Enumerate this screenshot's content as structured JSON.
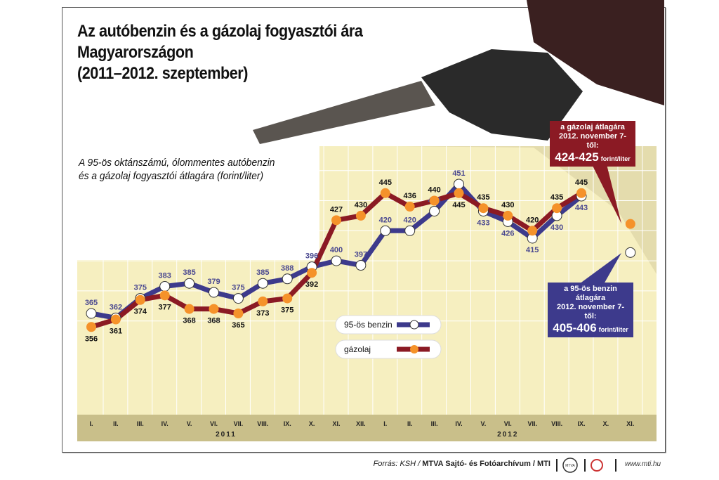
{
  "title": [
    "Az autóbenzin és a gázolaj fogyasztói ára",
    "Magyarországon",
    "(2011–2012. szeptember)"
  ],
  "subtitle": [
    "A 95-ös oktánszámú, ólommentes autóbenzin",
    "és a gázolaj fogyasztói átlagára (forint/liter)"
  ],
  "chart_data": {
    "type": "line",
    "categories": [
      "I.",
      "II.",
      "III.",
      "IV.",
      "V.",
      "VI.",
      "VII.",
      "VIII.",
      "IX.",
      "X.",
      "XI.",
      "XII.",
      "I.",
      "II.",
      "III.",
      "IV.",
      "V.",
      "VI.",
      "VII.",
      "VIII.",
      "IX.",
      "X.",
      "XI."
    ],
    "years": [
      {
        "label": "2011",
        "months": 12
      },
      {
        "label": "2012",
        "months": 11
      }
    ],
    "series": [
      {
        "name": "95-ös benzin",
        "color": "#3d3a8c",
        "marker": "#ffffff",
        "values": [
          365,
          362,
          375,
          383,
          385,
          379,
          375,
          385,
          388,
          396,
          400,
          397,
          420,
          420,
          433,
          451,
          433,
          426,
          415,
          430,
          443,
          null,
          null
        ],
        "extra_point": {
          "category_index": 22,
          "value": 405.5
        }
      },
      {
        "name": "gázolaj",
        "color": "#8b1a24",
        "marker": "#f5922a",
        "values": [
          356,
          361,
          374,
          377,
          368,
          368,
          365,
          373,
          375,
          392,
          427,
          430,
          445,
          436,
          440,
          445,
          435,
          430,
          420,
          435,
          445,
          null,
          null
        ],
        "extra_point": {
          "category_index": 22,
          "value": 424.5
        }
      }
    ],
    "ylabel": "forint/liter",
    "grid": true,
    "legend": "center"
  },
  "callouts": {
    "diesel": {
      "line1": "a gázolaj átlagára",
      "line2": "2012. november 7-től:",
      "value": "424-425",
      "unit": "forint/liter",
      "color": "#8b1a24"
    },
    "petrol": {
      "line1": "a 95-ös benzin átlagára",
      "line2": "2012. november 7-től:",
      "value": "405-406",
      "unit": "forint/liter",
      "color": "#3d3a8c"
    }
  },
  "footer": {
    "source_prefix": "Forrás: KSH / ",
    "source_bold": "MTVA Sajtó- és Fotóarchívum / MTI",
    "logo1": "MTVA",
    "website": "www.mti.hu"
  },
  "colors": {
    "plot_bg": "#f6efc0",
    "axis_band": "#c9bf8a"
  }
}
